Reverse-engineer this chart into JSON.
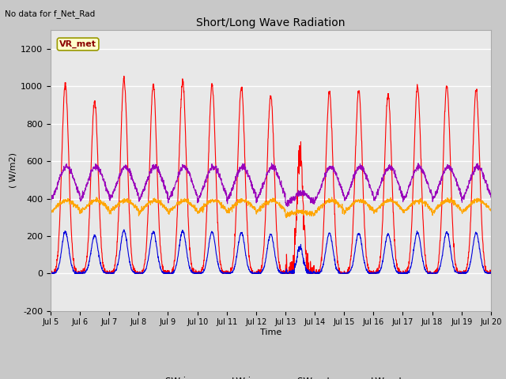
{
  "title": "Short/Long Wave Radiation",
  "ylabel": "( W/m2)",
  "xlabel": "Time",
  "top_left_text": "No data for f_Net_Rad",
  "station_label": "VR_met",
  "ylim": [
    -200,
    1300
  ],
  "yticks": [
    -200,
    0,
    200,
    400,
    600,
    800,
    1000,
    1200
  ],
  "xtick_labels": [
    "Jul 5",
    "Jul 6",
    "Jul 7",
    "Jul 8",
    "Jul 9",
    "Jul 10",
    "Jul 11",
    "Jul 12",
    "Jul 13",
    "Jul 14",
    "Jul 15",
    "Jul 16",
    "Jul 17",
    "Jul 18",
    "Jul 19",
    "Jul 20"
  ],
  "colors": {
    "SW_in": "#ff0000",
    "LW_in": "#ffa500",
    "SW_out": "#0000dd",
    "LW_out": "#9900bb"
  },
  "fig_width": 6.4,
  "fig_height": 4.8,
  "dpi": 100,
  "bg_color": "#c8c8c8",
  "plot_bg_color": "#e8e8e8",
  "grid_color": "#ffffff"
}
